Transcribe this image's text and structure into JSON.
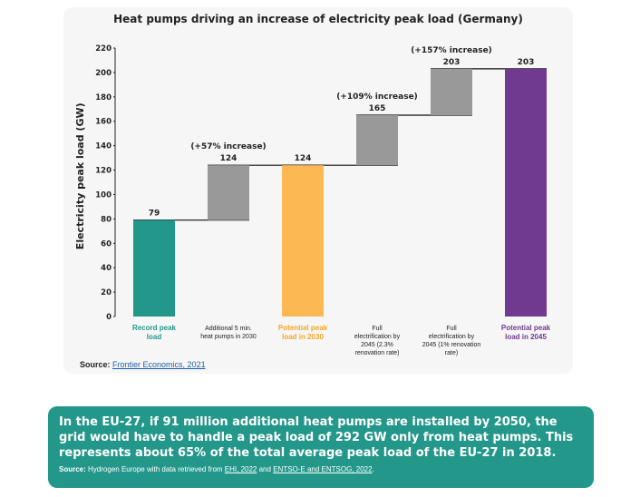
{
  "chart_data": {
    "type": "bar",
    "subtype": "waterfall",
    "title": "Heat pumps driving an increase of electricity peak load (Germany)",
    "ylabel": "Electricity peak load (GW)",
    "xlabel": "",
    "ylim": [
      0,
      220
    ],
    "yticks": [
      0,
      20,
      40,
      60,
      80,
      100,
      120,
      140,
      160,
      180,
      200,
      220
    ],
    "grid": false,
    "bars": [
      {
        "label": "Record peak load",
        "start": 0,
        "end": 79,
        "value_label": "79",
        "increase_label": "",
        "color": "#23978a",
        "label_color": "#23978a",
        "label_bold": true
      },
      {
        "label": "Additional 5 min. heat pumps in 2030",
        "start": 79,
        "end": 124,
        "value_label": "124",
        "increase_label": "(+57% increase)",
        "color": "#999999",
        "label_color": "#222222",
        "label_bold": false
      },
      {
        "label": "Potential peak load in 2030",
        "start": 0,
        "end": 124,
        "value_label": "124",
        "increase_label": "",
        "color": "#fbb853",
        "label_color": "#f5a623",
        "label_bold": true
      },
      {
        "label": "Full electrification by 2045 (2.3% renovation rate)",
        "start": 124,
        "end": 165,
        "value_label": "165",
        "increase_label": "(+109% increase)",
        "color": "#999999",
        "label_color": "#222222",
        "label_bold": false
      },
      {
        "label": "Full electrification by 2045 (1% renovation rate)",
        "start": 165,
        "end": 203,
        "value_label": "203",
        "increase_label": "(+157% increase)",
        "color": "#999999",
        "label_color": "#222222",
        "label_bold": false
      },
      {
        "label": "Potential peak load in 2045",
        "start": 0,
        "end": 203,
        "value_label": "203",
        "increase_label": "",
        "color": "#6f3a90",
        "label_color": "#6f3a90",
        "label_bold": true
      }
    ]
  },
  "source": {
    "label": "Source:",
    "text": "Frontier Economics, 2021"
  },
  "banner": {
    "message": "In the EU-27, if 91 million additional heat pumps are installed by 2050, the grid would have to handle a peak load of 292 GW only from heat pumps. This represents about 65% of the total average peak load of the EU-27 in 2018.",
    "source_label": "Source:",
    "source_pre": "Hydrogen Europe with data retrieved from",
    "link1": "EHI, 2022",
    "and": "and",
    "link2": "ENTSO-E and ENTSOG, 2022",
    "end": "."
  }
}
